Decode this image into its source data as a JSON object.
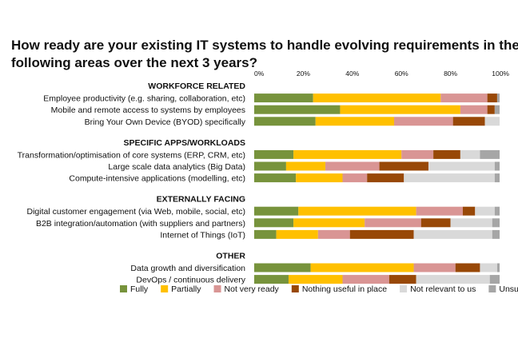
{
  "chart_data": {
    "type": "bar",
    "orientation": "horizontal-stacked",
    "title": "How ready are your existing IT systems to handle evolving requirements in the following areas over the next 3 years?",
    "title_lines": [
      "How ready are your existing IT systems to handle evolving requirements in the",
      "following areas over the next 3 years?"
    ],
    "xlim": [
      0,
      100
    ],
    "x_ticks": [
      "0%",
      "20%",
      "40%",
      "60%",
      "80%",
      "100%"
    ],
    "legend_position": "bottom",
    "groups": [
      {
        "label": "WORKFORCE RELATED",
        "categories": [
          {
            "label": "Employee productivity (e.g. sharing, collaboration, etc)",
            "values": [
              24,
              52,
              19,
              4,
              0,
              1
            ]
          },
          {
            "label": "Mobile and remote access to systems by employees",
            "values": [
              35,
              49,
              11,
              3,
              0,
              2
            ]
          },
          {
            "label": "Bring Your Own Device (BYOD) specifically",
            "values": [
              25,
              32,
              24,
              13,
              6,
              0
            ]
          }
        ]
      },
      {
        "label": "SPECIFIC APPS/WORKLOADS",
        "categories": [
          {
            "label": "Transformation/optimisation of core systems (ERP, CRM, etc)",
            "values": [
              16,
              44,
              13,
              11,
              8,
              8
            ]
          },
          {
            "label": "Large scale data analytics (Big Data)",
            "values": [
              13,
              16,
              22,
              20,
              27,
              2
            ]
          },
          {
            "label": "Compute-intensive applications (modelling, etc)",
            "values": [
              17,
              19,
              10,
              15,
              37,
              2
            ]
          }
        ]
      },
      {
        "label": "EXTERNALLY FACING",
        "categories": [
          {
            "label": "Digital customer engagement (via Web, mobile, social, etc)",
            "values": [
              18,
              48,
              19,
              5,
              8,
              2
            ]
          },
          {
            "label": "B2B integration/automation (with suppliers and partners)",
            "values": [
              16,
              29,
              23,
              12,
              17,
              3
            ]
          },
          {
            "label": "Internet of Things (IoT)",
            "values": [
              9,
              17,
              13,
              26,
              32,
              3
            ]
          }
        ]
      },
      {
        "label": "OTHER",
        "categories": [
          {
            "label": "Data growth and diversification",
            "values": [
              23,
              42,
              17,
              10,
              7,
              1
            ]
          },
          {
            "label": "DevOps / continuous delivery",
            "values": [
              14,
              22,
              19,
              11,
              30,
              4
            ]
          }
        ]
      }
    ],
    "series": [
      {
        "name": "Fully",
        "color": "#77933c"
      },
      {
        "name": "Partially",
        "color": "#ffc000"
      },
      {
        "name": "Not very ready",
        "color": "#d99594"
      },
      {
        "name": "Nothing useful in place",
        "color": "#984807"
      },
      {
        "name": "Not relevant to us",
        "color": "#d9d9d9"
      },
      {
        "name": "Unsure",
        "color": "#a6a6a6"
      }
    ]
  }
}
